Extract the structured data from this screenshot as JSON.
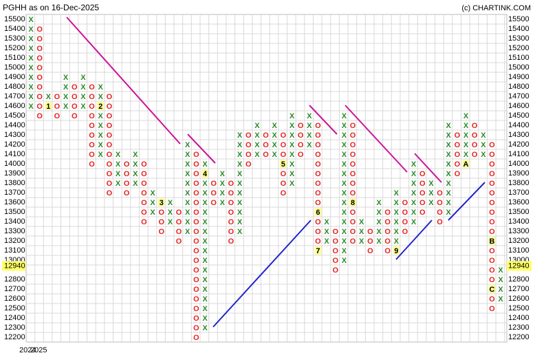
{
  "chart_data": {
    "type": "point-and-figure",
    "title": "PGHH as on 16-Dec-2025",
    "source": "(c) CHARTINK.COM",
    "ylim": [
      12150,
      15550
    ],
    "yticks": [
      15500,
      15400,
      15300,
      15200,
      15100,
      15000,
      14900,
      14800,
      14700,
      14600,
      14500,
      14400,
      14300,
      14200,
      14100,
      14000,
      13900,
      13800,
      13700,
      13600,
      13500,
      13400,
      13300,
      13200,
      13100,
      13000,
      12800,
      12700,
      12600,
      12500,
      12400,
      12300,
      12200
    ],
    "last_price": 12940,
    "box_size": 100,
    "x_labels": [
      "2024",
      "2025"
    ],
    "colors": {
      "X": "#2a8a2a",
      "O": "#e52222"
    },
    "columns": [
      {
        "kind": "X",
        "low": 14600,
        "high": 15500
      },
      {
        "kind": "O",
        "low": 14500,
        "high": 15400
      },
      {
        "kind": "X",
        "low": 14600,
        "high": 14700,
        "months": [
          {
            "price": 14600,
            "label": "1"
          }
        ]
      },
      {
        "kind": "O",
        "low": 14500,
        "high": 14700
      },
      {
        "kind": "X",
        "low": 14600,
        "high": 14900
      },
      {
        "kind": "O",
        "low": 14500,
        "high": 14800
      },
      {
        "kind": "X",
        "low": 14600,
        "high": 14900
      },
      {
        "kind": "O",
        "low": 14000,
        "high": 14800
      },
      {
        "kind": "X",
        "low": 14100,
        "high": 14800,
        "months": [
          {
            "price": 14600,
            "label": "2"
          }
        ]
      },
      {
        "kind": "O",
        "low": 13700,
        "high": 14700
      },
      {
        "kind": "X",
        "low": 13800,
        "high": 14100
      },
      {
        "kind": "O",
        "low": 13700,
        "high": 14000
      },
      {
        "kind": "X",
        "low": 13800,
        "high": 14100
      },
      {
        "kind": "O",
        "low": 13400,
        "high": 14000
      },
      {
        "kind": "X",
        "low": 13500,
        "high": 13700
      },
      {
        "kind": "O",
        "low": 13300,
        "high": 13600,
        "months": [
          {
            "price": 13600,
            "label": "3"
          }
        ]
      },
      {
        "kind": "X",
        "low": 13400,
        "high": 13600
      },
      {
        "kind": "O",
        "low": 13200,
        "high": 13500
      },
      {
        "kind": "X",
        "low": 13300,
        "high": 14200
      },
      {
        "kind": "O",
        "low": 12200,
        "high": 14100
      },
      {
        "kind": "X",
        "low": 12300,
        "high": 14000,
        "months": [
          {
            "price": 13900,
            "label": "4"
          }
        ]
      },
      {
        "kind": "O",
        "low": 13600,
        "high": 13800
      },
      {
        "kind": "X",
        "low": 13600,
        "high": 13900
      },
      {
        "kind": "O",
        "low": 13200,
        "high": 13800
      },
      {
        "kind": "X",
        "low": 13300,
        "high": 14300
      },
      {
        "kind": "O",
        "low": 14000,
        "high": 14300
      },
      {
        "kind": "X",
        "low": 14100,
        "high": 14400
      },
      {
        "kind": "O",
        "low": 14100,
        "high": 14300
      },
      {
        "kind": "X",
        "low": 14100,
        "high": 14400
      },
      {
        "kind": "O",
        "low": 13700,
        "high": 14300,
        "months": [
          {
            "price": 14000,
            "label": "5"
          }
        ]
      },
      {
        "kind": "X",
        "low": 13800,
        "high": 14500
      },
      {
        "kind": "O",
        "low": 14100,
        "high": 14400
      },
      {
        "kind": "X",
        "low": 14200,
        "high": 14500
      },
      {
        "kind": "O",
        "low": 13100,
        "high": 14400,
        "months": [
          {
            "price": 13500,
            "label": "6"
          },
          {
            "price": 13100,
            "label": "7"
          }
        ]
      },
      {
        "kind": "X",
        "low": 13200,
        "high": 13400
      },
      {
        "kind": "O",
        "low": 12900,
        "high": 13300
      },
      {
        "kind": "X",
        "low": 13000,
        "high": 14500
      },
      {
        "kind": "O",
        "low": 13200,
        "high": 14400,
        "months": [
          {
            "price": 13600,
            "label": "8"
          }
        ]
      },
      {
        "kind": "X",
        "low": 13200,
        "high": 13400
      },
      {
        "kind": "O",
        "low": 13100,
        "high": 13300
      },
      {
        "kind": "X",
        "low": 13200,
        "high": 13600
      },
      {
        "kind": "O",
        "low": 13100,
        "high": 13500
      },
      {
        "kind": "X",
        "low": 13100,
        "high": 13700,
        "months": [
          {
            "price": 13100,
            "label": "9"
          }
        ]
      },
      {
        "kind": "O",
        "low": 13300,
        "high": 13600
      },
      {
        "kind": "X",
        "low": 13400,
        "high": 14000
      },
      {
        "kind": "O",
        "low": 13500,
        "high": 13900
      },
      {
        "kind": "X",
        "low": 13600,
        "high": 13800
      },
      {
        "kind": "O",
        "low": 13400,
        "high": 13700
      },
      {
        "kind": "X",
        "low": 13500,
        "high": 14400
      },
      {
        "kind": "O",
        "low": 13900,
        "high": 14300
      },
      {
        "kind": "X",
        "low": 14000,
        "high": 14500,
        "months": [
          {
            "price": 14000,
            "label": "A"
          }
        ]
      },
      {
        "kind": "O",
        "low": 14100,
        "high": 14400
      },
      {
        "kind": "X",
        "low": 14100,
        "high": 14300
      },
      {
        "kind": "O",
        "low": 12500,
        "high": 14200,
        "months": [
          {
            "price": 13200,
            "label": "B"
          },
          {
            "price": 12700,
            "label": "C"
          }
        ]
      },
      {
        "kind": "X",
        "low": 12600,
        "high": 12900
      }
    ]
  }
}
